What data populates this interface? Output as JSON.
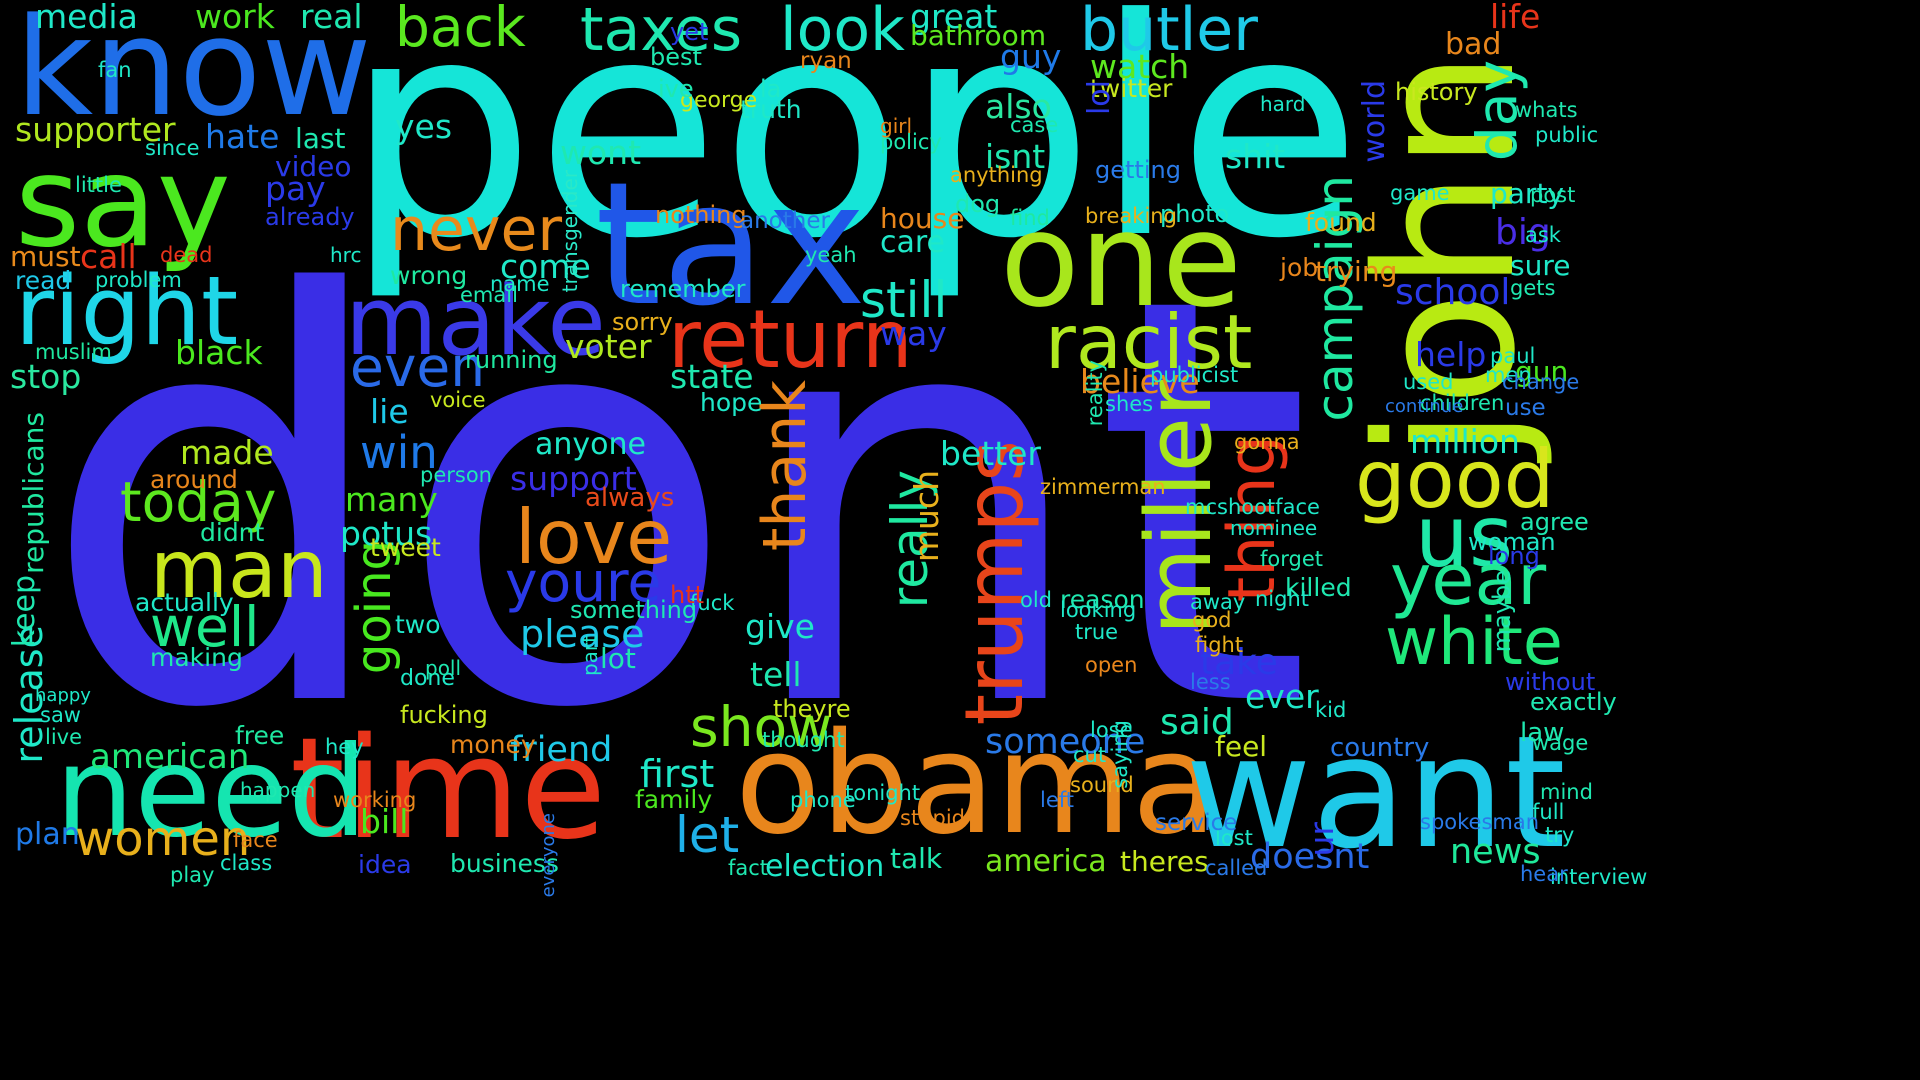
{
  "words": [
    {
      "text": "dont",
      "color": "#3a2ee6"
    },
    {
      "text": "people",
      "color": "#15e5d8"
    },
    {
      "text": "tax",
      "color": "#2057e8"
    },
    {
      "text": "one",
      "color": "#a8e61c"
    },
    {
      "text": "john",
      "color": "#b8ea12"
    },
    {
      "text": "obama",
      "color": "#e8861c"
    },
    {
      "text": "want",
      "color": "#1fc9e8"
    },
    {
      "text": "time",
      "color": "#e8341a"
    },
    {
      "text": "need",
      "color": "#15e5b0"
    },
    {
      "text": "know",
      "color": "#1f6ee8"
    },
    {
      "text": "say",
      "color": "#4be81f"
    },
    {
      "text": "right",
      "color": "#1fd6e8"
    },
    {
      "text": "make",
      "color": "#3a3ae8"
    },
    {
      "text": "return",
      "color": "#e8341a"
    },
    {
      "text": "racist",
      "color": "#b0e81f"
    },
    {
      "text": "miller",
      "color": "#a8e61c"
    },
    {
      "text": "trumps",
      "color": "#e8451a"
    },
    {
      "text": "thank",
      "color": "#e8861c"
    },
    {
      "text": "thing",
      "color": "#e8341a"
    },
    {
      "text": "good",
      "color": "#d8e61c"
    },
    {
      "text": "us",
      "color": "#1fe8a8"
    },
    {
      "text": "year",
      "color": "#1fe894"
    },
    {
      "text": "white",
      "color": "#1fe87a"
    },
    {
      "text": "love",
      "color": "#e8861c"
    },
    {
      "text": "youre",
      "color": "#2a3ae8"
    },
    {
      "text": "man",
      "color": "#c8e61c"
    },
    {
      "text": "today",
      "color": "#5de81f"
    },
    {
      "text": "well",
      "color": "#1fe88a"
    },
    {
      "text": "taxes",
      "color": "#1fe8b0"
    },
    {
      "text": "back",
      "color": "#5ae81f"
    },
    {
      "text": "butler",
      "color": "#1fc9e8"
    },
    {
      "text": "look",
      "color": "#1fe8c8"
    },
    {
      "text": "never",
      "color": "#e88a1c"
    },
    {
      "text": "still",
      "color": "#1fe8c8"
    },
    {
      "text": "campaign",
      "color": "#1fe8a0"
    },
    {
      "text": "day",
      "color": "#1fe8b0"
    },
    {
      "text": "even",
      "color": "#2a6ae8"
    },
    {
      "text": "show",
      "color": "#7ae81f"
    },
    {
      "text": "going",
      "color": "#48e81f"
    },
    {
      "text": "really",
      "color": "#1fe8a0"
    },
    {
      "text": "women",
      "color": "#e8b01c"
    },
    {
      "text": "american",
      "color": "#1fe87a"
    },
    {
      "text": "first",
      "color": "#1fe8c8"
    },
    {
      "text": "let",
      "color": "#1fb0e8"
    },
    {
      "text": "friend",
      "color": "#1fc9e8"
    },
    {
      "text": "someone",
      "color": "#2a7ae8"
    },
    {
      "text": "said",
      "color": "#1fe8b0"
    },
    {
      "text": "take",
      "color": "#2a3ae8"
    },
    {
      "text": "news",
      "color": "#1fe89a"
    },
    {
      "text": "doesnt",
      "color": "#2a6ae8"
    },
    {
      "text": "america",
      "color": "#7ae81f"
    },
    {
      "text": "election",
      "color": "#1fe8c8"
    },
    {
      "text": "business",
      "color": "#1fe8b0"
    },
    {
      "text": "idea",
      "color": "#2a3ae8"
    },
    {
      "text": "plan",
      "color": "#1f7ae8"
    },
    {
      "text": "release",
      "color": "#1fe8c8"
    },
    {
      "text": "stop",
      "color": "#2ae8a0"
    },
    {
      "text": "black",
      "color": "#4be81f"
    },
    {
      "text": "supporter",
      "color": "#b0e81f"
    },
    {
      "text": "hate",
      "color": "#1f7ae8"
    },
    {
      "text": "media",
      "color": "#1fe8c8"
    },
    {
      "text": "work",
      "color": "#4be81f"
    },
    {
      "text": "real",
      "color": "#1fe8b0"
    },
    {
      "text": "pay",
      "color": "#2a3ae8"
    },
    {
      "text": "great",
      "color": "#1fe8c8"
    },
    {
      "text": "bathroom",
      "color": "#5de81f"
    },
    {
      "text": "watch",
      "color": "#5de81f"
    },
    {
      "text": "twitter",
      "color": "#c8e81f"
    },
    {
      "text": "also",
      "color": "#2ae8a0"
    },
    {
      "text": "isnt",
      "color": "#1fe8b0"
    },
    {
      "text": "shit",
      "color": "#1fe8c8"
    },
    {
      "text": "guy",
      "color": "#1f7ae8"
    },
    {
      "text": "yes",
      "color": "#1fe8c8"
    },
    {
      "text": "wont",
      "color": "#1fe8b0"
    },
    {
      "text": "voter",
      "color": "#b0e81f"
    },
    {
      "text": "state",
      "color": "#1fe8b0"
    },
    {
      "text": "believe",
      "color": "#e88a1c"
    },
    {
      "text": "win",
      "color": "#1f7ae8"
    },
    {
      "text": "lie",
      "color": "#1fc9e8"
    },
    {
      "text": "made",
      "color": "#b0e81f"
    },
    {
      "text": "many",
      "color": "#4be81f"
    },
    {
      "text": "support",
      "color": "#3a2ee6"
    },
    {
      "text": "anyone",
      "color": "#1fe8c8"
    },
    {
      "text": "always",
      "color": "#e84a1a"
    },
    {
      "text": "please",
      "color": "#1fc9e8"
    },
    {
      "text": "give",
      "color": "#1fe8c8"
    },
    {
      "text": "tell",
      "color": "#1fe8b0"
    },
    {
      "text": "better",
      "color": "#1fe8c8"
    },
    {
      "text": "much",
      "color": "#e8b01c"
    },
    {
      "text": "million",
      "color": "#1fe8c8"
    },
    {
      "text": "school",
      "color": "#2a3ae8"
    },
    {
      "text": "help",
      "color": "#2a3ae8"
    },
    {
      "text": "gun",
      "color": "#4be81f"
    },
    {
      "text": "big",
      "color": "#4a2ee6"
    },
    {
      "text": "sure",
      "color": "#1fe8c8"
    },
    {
      "text": "party",
      "color": "#1fe8c8"
    },
    {
      "text": "world",
      "color": "#2a3ae8"
    },
    {
      "text": "life",
      "color": "#e8341a"
    },
    {
      "text": "bad",
      "color": "#e8861c"
    },
    {
      "text": "history",
      "color": "#c8e81f"
    },
    {
      "text": "call",
      "color": "#e8341a"
    },
    {
      "text": "must",
      "color": "#e88a1c"
    },
    {
      "text": "read",
      "color": "#1fc9e8"
    },
    {
      "text": "come",
      "color": "#1fe8c8"
    },
    {
      "text": "wrong",
      "color": "#1fe8a0"
    },
    {
      "text": "care",
      "color": "#1fe8c8"
    },
    {
      "text": "house",
      "color": "#e8861c"
    },
    {
      "text": "way",
      "color": "#2a3ae8"
    },
    {
      "text": "job",
      "color": "#e8861c"
    },
    {
      "text": "trying",
      "color": "#e88a1c"
    },
    {
      "text": "found",
      "color": "#e8b01c"
    },
    {
      "text": "ever",
      "color": "#1fe8c8"
    },
    {
      "text": "feel",
      "color": "#c8e81f"
    },
    {
      "text": "money",
      "color": "#e8861c"
    },
    {
      "text": "bill",
      "color": "#4be81f"
    },
    {
      "text": "family",
      "color": "#4be81f"
    },
    {
      "text": "talk",
      "color": "#1fe8b0"
    },
    {
      "text": "theres",
      "color": "#c8e81f"
    },
    {
      "text": "country",
      "color": "#2a7ae8"
    },
    {
      "text": "law",
      "color": "#1fe8b0"
    },
    {
      "text": "ur",
      "color": "#2a3ae8"
    },
    {
      "text": "video",
      "color": "#2a3ae8"
    },
    {
      "text": "last",
      "color": "#1fe8b0"
    },
    {
      "text": "since",
      "color": "#1fe8c8"
    },
    {
      "text": "already",
      "color": "#2a3ae8"
    },
    {
      "text": "keep",
      "color": "#1fe8b0"
    },
    {
      "text": "republicans",
      "color": "#1fe8a0"
    },
    {
      "text": "muslim",
      "color": "#1fe8a0"
    },
    {
      "text": "live",
      "color": "#1fe8b0"
    },
    {
      "text": "free",
      "color": "#1fe8a0"
    },
    {
      "text": "hey",
      "color": "#1fe8c8"
    },
    {
      "text": "potus",
      "color": "#1fe8c8"
    },
    {
      "text": "tweet",
      "color": "#c8e81f"
    },
    {
      "text": "actually",
      "color": "#1fe8c8"
    },
    {
      "text": "making",
      "color": "#1fe8b0"
    },
    {
      "text": "didnt",
      "color": "#1fe8a0"
    },
    {
      "text": "around",
      "color": "#e8861c"
    },
    {
      "text": "person",
      "color": "#1fe8b0"
    },
    {
      "text": "hope",
      "color": "#1fe8c8"
    },
    {
      "text": "voice",
      "color": "#c8e81f"
    },
    {
      "text": "fucking",
      "color": "#c8e81f"
    },
    {
      "text": "done",
      "color": "#1fe8c8"
    },
    {
      "text": "lot",
      "color": "#1fe8b0"
    },
    {
      "text": "something",
      "color": "#1fe8b0"
    },
    {
      "text": "two",
      "color": "#1fe8c8"
    },
    {
      "text": "theyre",
      "color": "#c8e81f"
    },
    {
      "text": "remember",
      "color": "#1fe8c8"
    },
    {
      "text": "running",
      "color": "#1fe8a0"
    },
    {
      "text": "sorry",
      "color": "#e8b01c"
    },
    {
      "text": "transgender",
      "color": "#2ae8c8"
    },
    {
      "text": "nothing",
      "color": "#e8861c"
    },
    {
      "text": "another",
      "color": "#2a7ae8"
    },
    {
      "text": "policy",
      "color": "#1fe8b0"
    },
    {
      "text": "truth",
      "color": "#1fe8c8"
    },
    {
      "text": "george",
      "color": "#c8e81f"
    },
    {
      "text": "ryan",
      "color": "#e8861c"
    },
    {
      "text": "yet",
      "color": "#2a3ae8"
    },
    {
      "text": "best",
      "color": "#1fe8b0"
    },
    {
      "text": "ive",
      "color": "#1fe8b0"
    },
    {
      "text": "la",
      "color": "#1fe8c8"
    },
    {
      "text": "girl",
      "color": "#e8861c"
    },
    {
      "text": "anything",
      "color": "#e8b01c"
    },
    {
      "text": "getting",
      "color": "#2a7ae8"
    },
    {
      "text": "lol",
      "color": "#2a3ae8"
    },
    {
      "text": "photo",
      "color": "#1fe8c8"
    },
    {
      "text": "breaking",
      "color": "#e8b01c"
    },
    {
      "text": "find",
      "color": "#1fe8a0"
    },
    {
      "text": "dog",
      "color": "#1fe8b0"
    },
    {
      "text": "case",
      "color": "#1fe8b0"
    },
    {
      "text": "hard",
      "color": "#1fe8c8"
    },
    {
      "text": "fan",
      "color": "#1fe8c8"
    },
    {
      "text": "little",
      "color": "#1fe8b0"
    },
    {
      "text": "problem",
      "color": "#1fe8c8"
    },
    {
      "text": "name",
      "color": "#1fe8c8"
    },
    {
      "text": "email",
      "color": "#1fe8b0"
    },
    {
      "text": "dead",
      "color": "#e8341a"
    },
    {
      "text": "hrc",
      "color": "#1fe8c8"
    },
    {
      "text": "killed",
      "color": "#1fe8b0"
    },
    {
      "text": "kid",
      "color": "#1fe8c8"
    },
    {
      "text": "reason",
      "color": "#1fe8b0"
    },
    {
      "text": "old",
      "color": "#1fe8c8"
    },
    {
      "text": "fuck",
      "color": "#1fe8c8"
    },
    {
      "text": "htt",
      "color": "#e8341a"
    },
    {
      "text": "poll",
      "color": "#1fe8b0"
    },
    {
      "text": "part",
      "color": "#1fe8c8"
    },
    {
      "text": "yeah",
      "color": "#1fe8b0"
    },
    {
      "text": "children",
      "color": "#1fe8b0"
    },
    {
      "text": "agree",
      "color": "#1fe8b0"
    },
    {
      "text": "woman",
      "color": "#1fe8c8"
    },
    {
      "text": "long",
      "color": "#2a3ae8"
    },
    {
      "text": "maybe",
      "color": "#1fe8b0"
    },
    {
      "text": "exactly",
      "color": "#1fe8b0"
    },
    {
      "text": "use",
      "color": "#2a7ae8"
    },
    {
      "text": "without",
      "color": "#2a3ae8"
    },
    {
      "text": "game",
      "color": "#1fe8c8"
    },
    {
      "text": "post",
      "color": "#1fe8b0"
    },
    {
      "text": "whats",
      "color": "#1fe8b0"
    },
    {
      "text": "public",
      "color": "#1fe8c8"
    },
    {
      "text": "ask",
      "color": "#1fe8c8"
    },
    {
      "text": "gets",
      "color": "#1fe8b0"
    },
    {
      "text": "wage",
      "color": "#1fe8b0"
    },
    {
      "text": "full",
      "color": "#1fe8c8"
    },
    {
      "text": "mind",
      "color": "#1fe8b0"
    },
    {
      "text": "try",
      "color": "#1fe8c8"
    },
    {
      "text": "spokesman",
      "color": "#2a7ae8"
    },
    {
      "text": "interview",
      "color": "#1fe8c8"
    },
    {
      "text": "hear",
      "color": "#2a7ae8"
    },
    {
      "text": "fact",
      "color": "#1fe8b0"
    },
    {
      "text": "called",
      "color": "#2a7ae8"
    },
    {
      "text": "lost",
      "color": "#1fe8c8"
    },
    {
      "text": "service",
      "color": "#2a7ae8"
    },
    {
      "text": "cut",
      "color": "#1fe8c8"
    },
    {
      "text": "sound",
      "color": "#e8b01c"
    },
    {
      "text": "left",
      "color": "#2a7ae8"
    },
    {
      "text": "phone",
      "color": "#1fe8c8"
    },
    {
      "text": "stupid",
      "color": "#e8861c"
    },
    {
      "text": "tonight",
      "color": "#1fe8c8"
    },
    {
      "text": "thought",
      "color": "#1fe8b0"
    },
    {
      "text": "everyone",
      "color": "#2a7ae8"
    },
    {
      "text": "working",
      "color": "#e8861c"
    },
    {
      "text": "face",
      "color": "#e8861c"
    },
    {
      "text": "class",
      "color": "#1fe8c8"
    },
    {
      "text": "play",
      "color": "#1fe8b0"
    },
    {
      "text": "saw",
      "color": "#1fe8c8"
    },
    {
      "text": "happy",
      "color": "#1fe8c8"
    },
    {
      "text": "happen",
      "color": "#1fe8b0"
    },
    {
      "text": "away",
      "color": "#1fe8c8"
    },
    {
      "text": "forget",
      "color": "#1fe8b0"
    },
    {
      "text": "night",
      "color": "#1fe8c8"
    },
    {
      "text": "god",
      "color": "#e8b01c"
    },
    {
      "text": "fight",
      "color": "#e8b01c"
    },
    {
      "text": "less",
      "color": "#2a7ae8"
    },
    {
      "text": "mcshootface",
      "color": "#1fe8c8"
    },
    {
      "text": "gonna",
      "color": "#e8b01c"
    },
    {
      "text": "nominee",
      "color": "#1fe8c8"
    },
    {
      "text": "saying",
      "color": "#1fe8c8"
    },
    {
      "text": "open",
      "color": "#e8861c"
    },
    {
      "text": "lose",
      "color": "#1fe8c8"
    },
    {
      "text": "true",
      "color": "#1fe8c8"
    },
    {
      "text": "looking",
      "color": "#1fe8c8"
    },
    {
      "text": "zimmerman",
      "color": "#e8b01c"
    },
    {
      "text": "publicist",
      "color": "#1fe8c8"
    },
    {
      "text": "shes",
      "color": "#1fe8c8"
    },
    {
      "text": "reality",
      "color": "#1fe8b0"
    },
    {
      "text": "men",
      "color": "#1fe8c8"
    },
    {
      "text": "continue",
      "color": "#2a7ae8"
    },
    {
      "text": "paul",
      "color": "#1fe8c8"
    },
    {
      "text": "used",
      "color": "#1fe8c8"
    },
    {
      "text": "change",
      "color": "#2a7ae8"
    }
  ]
}
